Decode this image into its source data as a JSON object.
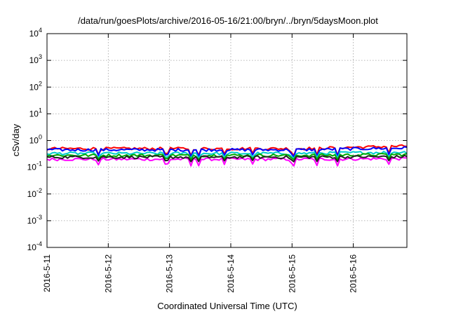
{
  "chart_data": {
    "type": "line",
    "title": "/data/run/goesPlots/archive/2016-05-16/21:00/bryn/../bryn/5daysMoon.plot",
    "xlabel": "Coordinated Universal Time (UTC)",
    "ylabel": "cSv/day",
    "x_tick_labels": [
      "2016-5-11",
      "2016-5-12",
      "2016-5-13",
      "2016-5-14",
      "2016-5-15",
      "2016-5-16"
    ],
    "xlim": [
      "2016-05-11",
      "2016-05-16 21:00"
    ],
    "y_scale": "log",
    "ylim": [
      0.0001,
      10000
    ],
    "y_ticks": [
      {
        "base": "10",
        "exp": "-4"
      },
      {
        "base": "10",
        "exp": "-3"
      },
      {
        "base": "10",
        "exp": "-2"
      },
      {
        "base": "10",
        "exp": "-1"
      },
      {
        "base": "10",
        "exp": "0"
      },
      {
        "base": "10",
        "exp": "1"
      },
      {
        "base": "10",
        "exp": "2"
      },
      {
        "base": "10",
        "exp": "3"
      },
      {
        "base": "10",
        "exp": "4"
      }
    ],
    "grid": true,
    "series": [
      {
        "color": "#ff00ff",
        "level": 0.2,
        "dip_level": 0.1,
        "end_level": 0.21
      },
      {
        "color": "#ff0000",
        "level": 0.5,
        "dip_level": 0.25,
        "end_level": 0.62
      },
      {
        "color": "#0000ff",
        "level": 0.45,
        "dip_level": 0.22,
        "end_level": 0.53
      },
      {
        "color": "#00cccc",
        "level": 0.33,
        "dip_level": 0.2,
        "end_level": 0.37
      },
      {
        "color": "#00aa00",
        "level": 0.28,
        "dip_level": 0.18,
        "end_level": 0.3
      },
      {
        "color": "#222222",
        "level": 0.24,
        "dip_level": 0.15,
        "end_level": 0.25
      }
    ]
  }
}
